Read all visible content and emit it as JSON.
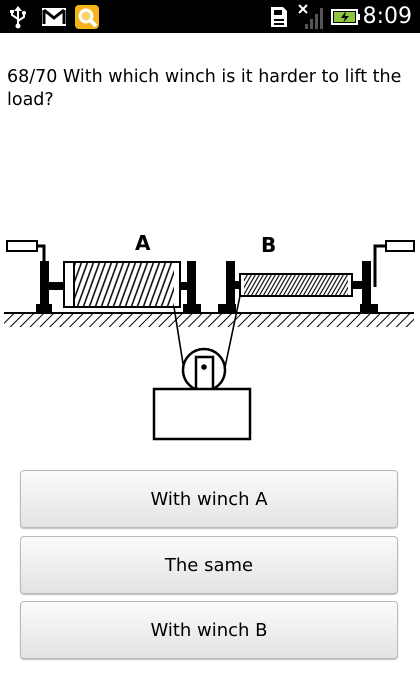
{
  "status_bar": {
    "time": "8:09",
    "icons": [
      "usb-icon",
      "gmail-icon",
      "search-app-icon",
      "sd-card-icon",
      "no-signal-icon",
      "battery-charging-icon"
    ]
  },
  "question": {
    "text": "68/70 With which winch is it harder to lift the load?"
  },
  "diagram": {
    "label_a": "A",
    "label_b": "B"
  },
  "answers": [
    {
      "label": "With winch A"
    },
    {
      "label": "The same"
    },
    {
      "label": "With winch B"
    }
  ]
}
